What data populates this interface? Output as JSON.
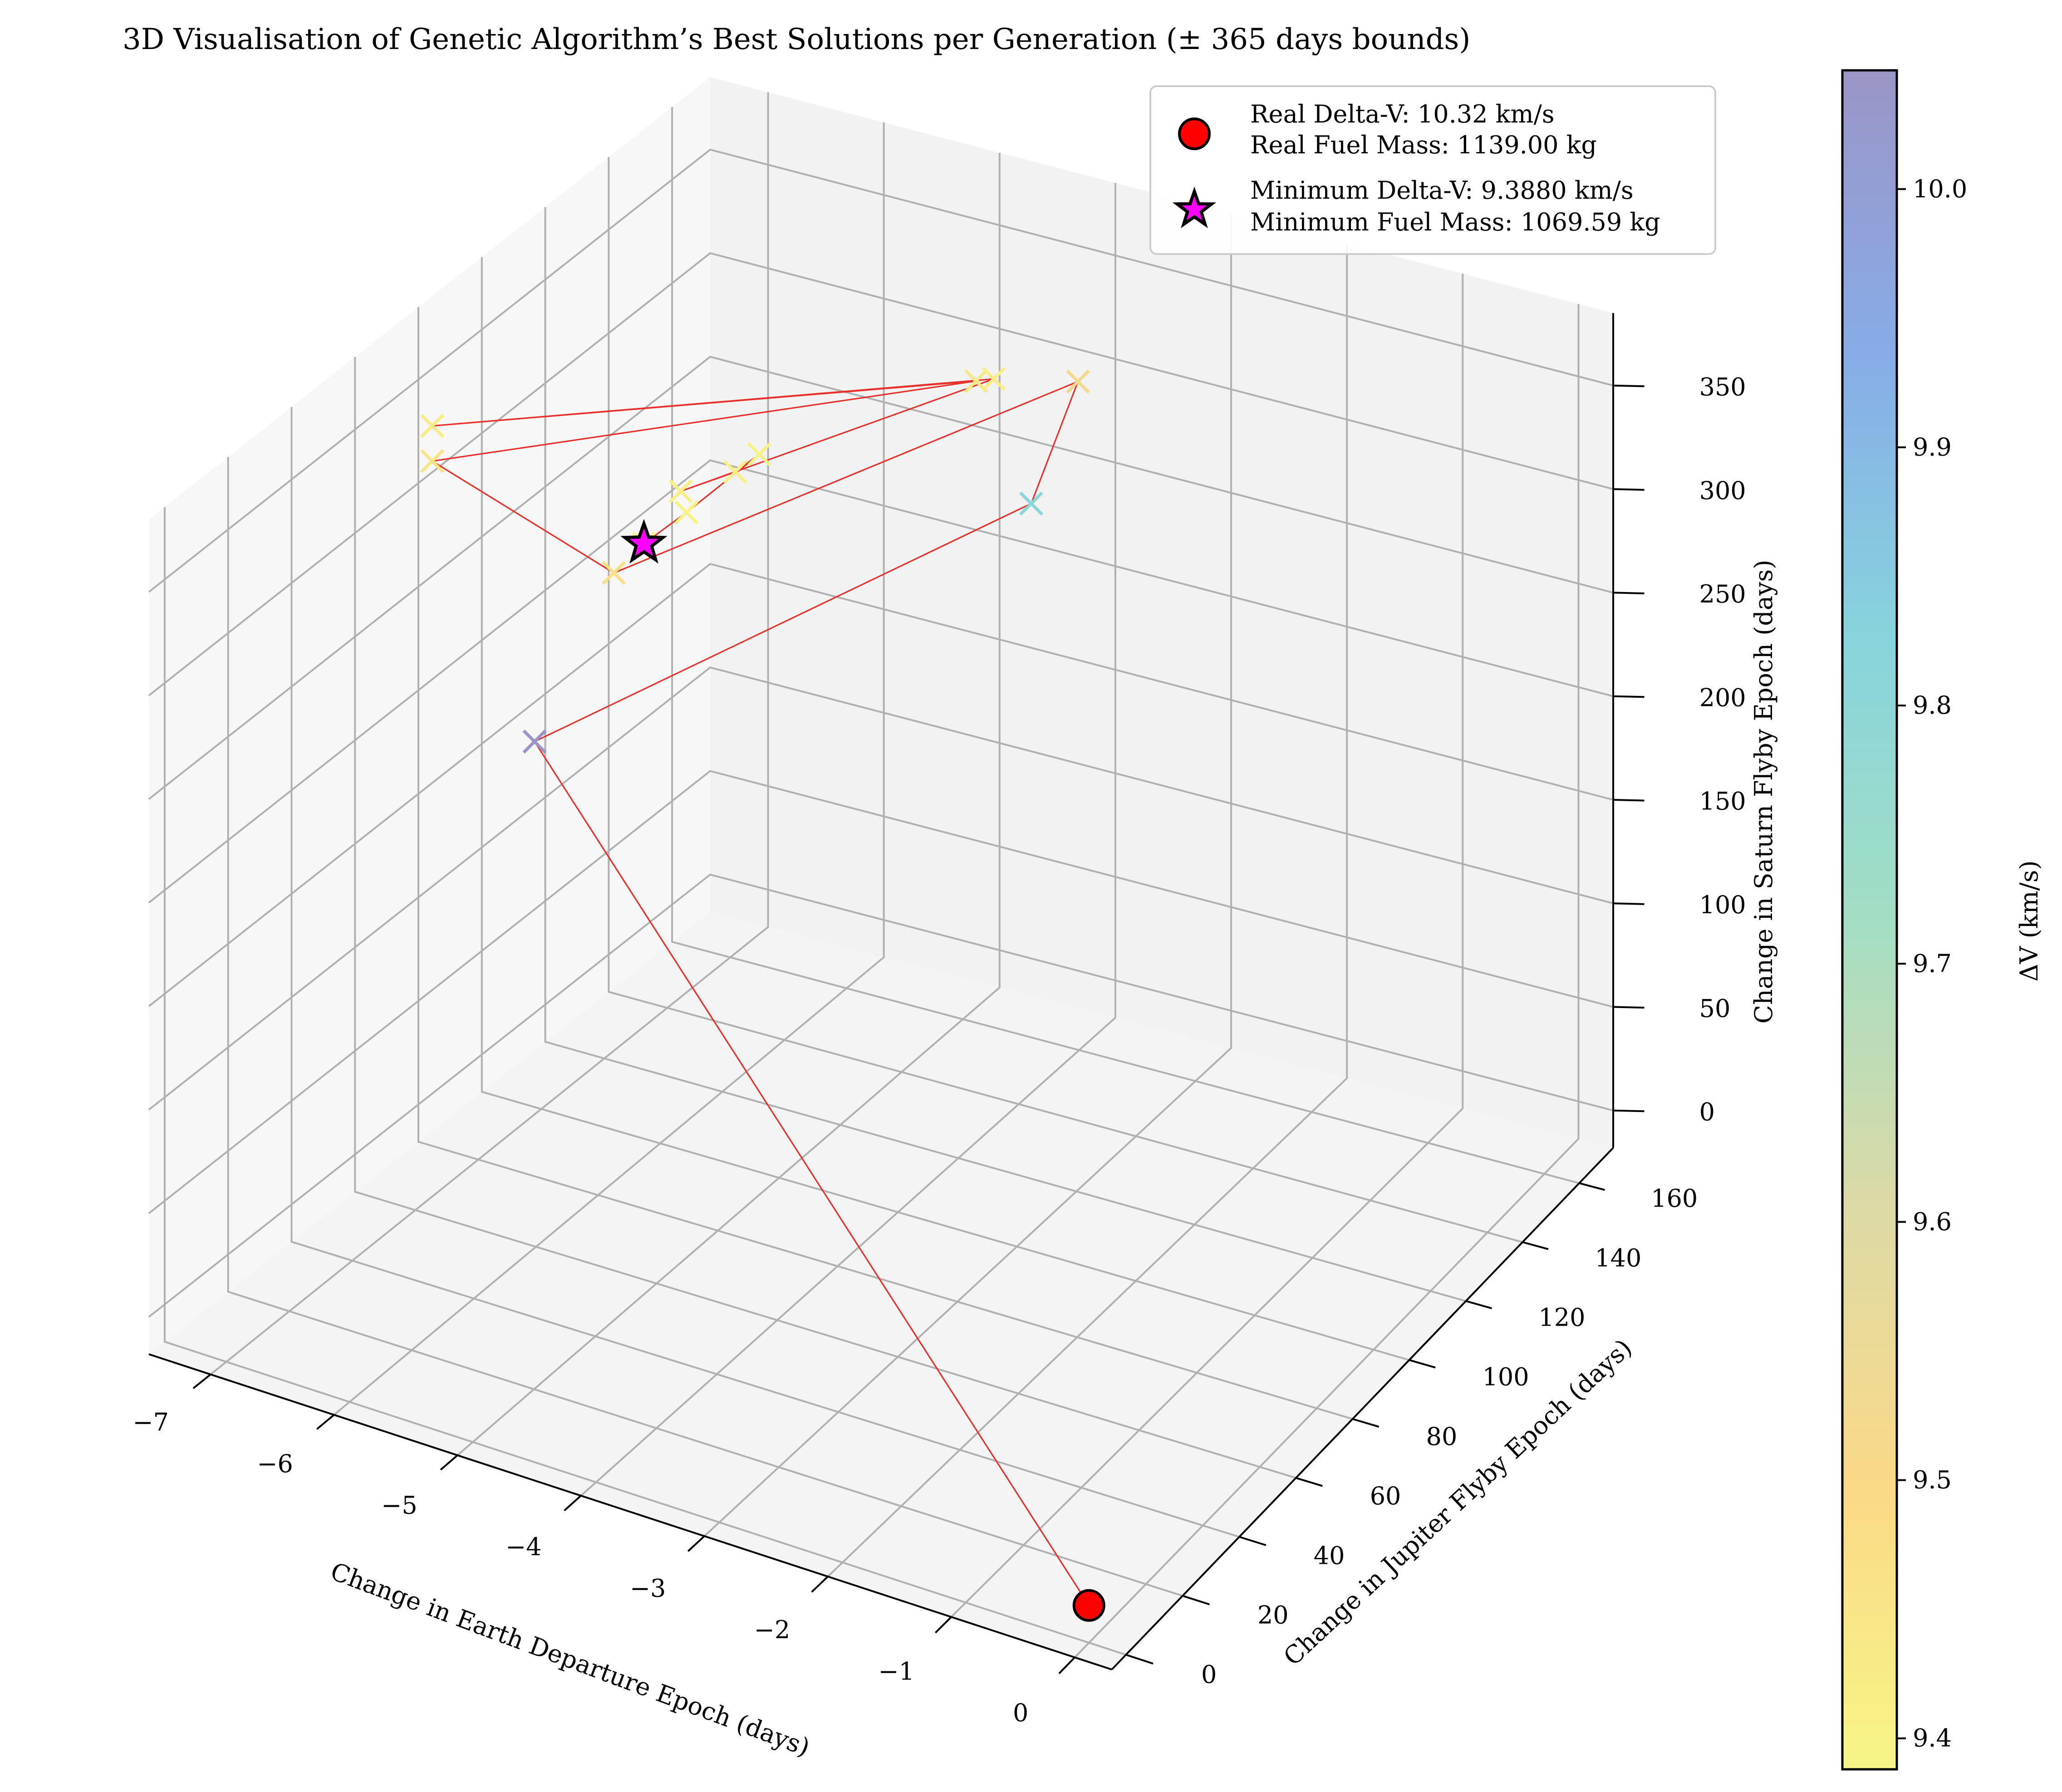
{
  "chart_data": {
    "type": "scatter",
    "title": "3D Visualisation of Genetic Algorithm’s Best Solutions per Generation (± 365 days bounds)",
    "xlabel": "Change in Earth Departure Epoch (days)",
    "ylabel": "Change in Jupiter Flyby Epoch (days)",
    "zlabel": "Change in Saturn Flyby Epoch (days)",
    "xlim": [
      -7.5,
      0.3
    ],
    "ylim": [
      -5,
      172
    ],
    "zlim": [
      -18,
      385
    ],
    "x_ticks": [
      -7,
      -6,
      -5,
      -4,
      -3,
      -2,
      -1,
      0
    ],
    "x_tick_labels": [
      "−7",
      "−6",
      "−5",
      "−4",
      "−3",
      "−2",
      "−1",
      "0"
    ],
    "y_ticks": [
      0,
      20,
      40,
      60,
      80,
      100,
      120,
      140,
      160
    ],
    "y_tick_labels": [
      "0",
      "20",
      "40",
      "60",
      "80",
      "100",
      "120",
      "140",
      "160"
    ],
    "z_ticks": [
      0,
      50,
      100,
      150,
      200,
      250,
      300,
      350
    ],
    "z_tick_labels": [
      "0",
      "50",
      "100",
      "150",
      "200",
      "250",
      "300",
      "350"
    ],
    "grid": true,
    "legend_position": "top-right",
    "colorbar": {
      "label": "ΔV (km/s)",
      "min": 9.388,
      "max": 10.046,
      "ticks": [
        9.4,
        9.5,
        9.6,
        9.7,
        9.8,
        9.9,
        10.0
      ],
      "tick_labels": [
        "9.4",
        "9.5",
        "9.6",
        "9.7",
        "9.8",
        "9.9",
        "10.0"
      ],
      "colormap": [
        "#f7f587",
        "#fad987",
        "#dcdaa6",
        "#a3dec4",
        "#87d4dc",
        "#87ace8",
        "#9b95c6"
      ]
    },
    "path_color": "#e8302a",
    "real_point": {
      "x": 0,
      "y": 0,
      "z": 0,
      "color": "#ff0000",
      "marker": "circle"
    },
    "minimum_point": {
      "x": -4.6,
      "y": 40,
      "z": 372,
      "color": "#ff00ff",
      "marker": "star"
    },
    "generations": [
      {
        "x": 0,
        "y": 0,
        "z": 0,
        "dv": 10.32
      },
      {
        "x": -5.5,
        "y": 40,
        "z": 260,
        "dv": 10.046
      },
      {
        "x": -4.1,
        "y": 148,
        "z": 260,
        "dv": 9.81
      },
      {
        "x": -3.7,
        "y": 148,
        "z": 325,
        "dv": 9.52
      },
      {
        "x": -5.1,
        "y": 50,
        "z": 336,
        "dv": 9.47
      },
      {
        "x": -6.6,
        "y": 50,
        "z": 363,
        "dv": 9.45
      },
      {
        "x": -3.8,
        "y": 118,
        "z": 363,
        "dv": 9.44
      },
      {
        "x": -6.6,
        "y": 50,
        "z": 380,
        "dv": 9.43
      },
      {
        "x": -3.7,
        "y": 120,
        "z": 363,
        "dv": 9.42
      },
      {
        "x": -4.8,
        "y": 60,
        "z": 368,
        "dv": 9.41
      },
      {
        "x": -4.6,
        "y": 70,
        "z": 368,
        "dv": 9.41
      },
      {
        "x": -4.4,
        "y": 70,
        "z": 380,
        "dv": 9.4
      },
      {
        "x": -4.5,
        "y": 50,
        "z": 376,
        "dv": 9.395
      },
      {
        "x": -4.6,
        "y": 40,
        "z": 372,
        "dv": 9.392
      },
      {
        "x": -4.6,
        "y": 40,
        "z": 372,
        "dv": 9.388
      }
    ],
    "legend": [
      {
        "line1": "Real Delta-V: 10.32 km/s",
        "line2": "Real Fuel Mass: 1139.00 kg",
        "marker": "circle"
      },
      {
        "line1": "Minimum Delta-V: 9.3880 km/s",
        "line2": "Minimum Fuel Mass: 1069.59 kg",
        "marker": "star"
      }
    ]
  }
}
